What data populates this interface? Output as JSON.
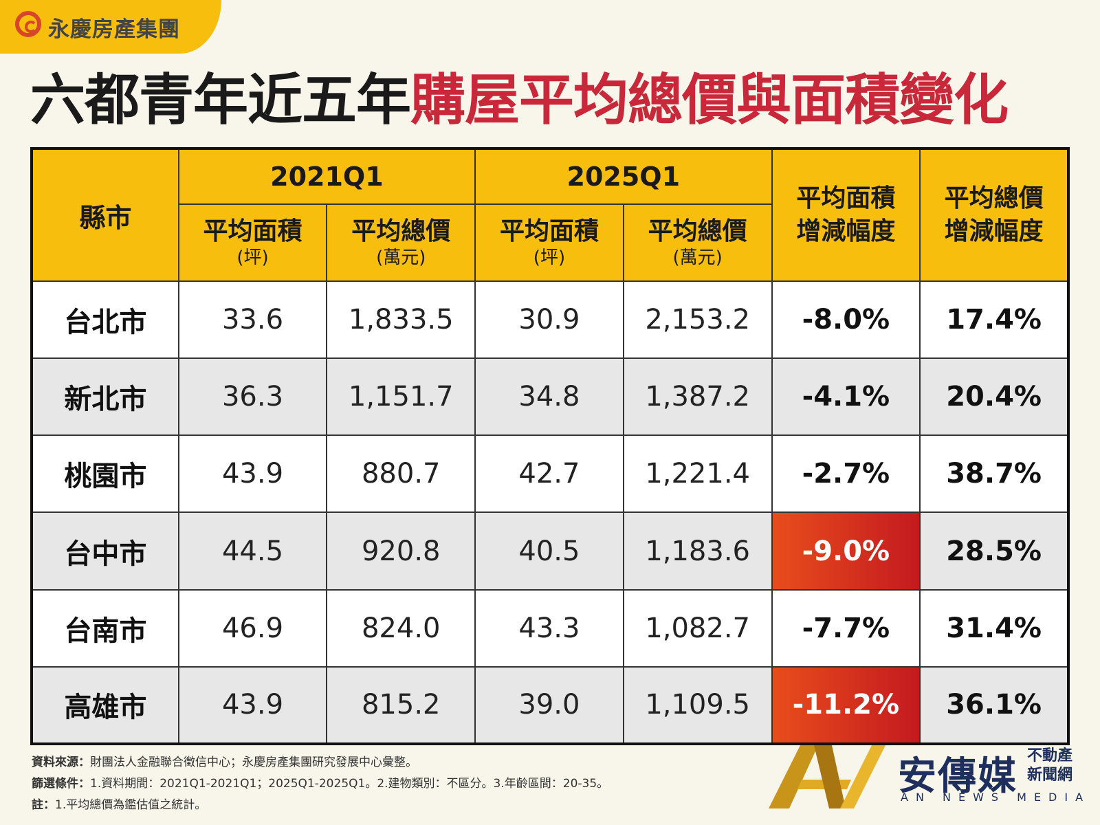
{
  "brand": {
    "name": "永慶房產集團"
  },
  "title": {
    "part1": "六都青年近五年",
    "part2": "購屋平均總價與面積變化"
  },
  "colors": {
    "header": "#f7be0d",
    "title_accent": "#c8283a",
    "highlight": "#d42b1f"
  },
  "table": {
    "city_header": "縣市",
    "groups": [
      "2021Q1",
      "2025Q1"
    ],
    "sub_headers": [
      {
        "label": "平均面積",
        "unit": "(坪)"
      },
      {
        "label": "平均總價",
        "unit": "(萬元)"
      },
      {
        "label": "平均面積",
        "unit": "(坪)"
      },
      {
        "label": "平均總價",
        "unit": "(萬元)"
      }
    ],
    "change_headers": [
      {
        "line1": "平均面積",
        "line2": "增減幅度"
      },
      {
        "line1": "平均總價",
        "line2": "增減幅度"
      }
    ],
    "rows": [
      {
        "city": "台北市",
        "area_2021": "33.6",
        "price_2021": "1,833.5",
        "area_2025": "30.9",
        "price_2025": "2,153.2",
        "area_change": "-8.0%",
        "price_change": "17.4%",
        "highlight": false
      },
      {
        "city": "新北市",
        "area_2021": "36.3",
        "price_2021": "1,151.7",
        "area_2025": "34.8",
        "price_2025": "1,387.2",
        "area_change": "-4.1%",
        "price_change": "20.4%",
        "highlight": false
      },
      {
        "city": "桃園市",
        "area_2021": "43.9",
        "price_2021": "880.7",
        "area_2025": "42.7",
        "price_2025": "1,221.4",
        "area_change": "-2.7%",
        "price_change": "38.7%",
        "highlight": false
      },
      {
        "city": "台中市",
        "area_2021": "44.5",
        "price_2021": "920.8",
        "area_2025": "40.5",
        "price_2025": "1,183.6",
        "area_change": "-9.0%",
        "price_change": "28.5%",
        "highlight": true
      },
      {
        "city": "台南市",
        "area_2021": "46.9",
        "price_2021": "824.0",
        "area_2025": "43.3",
        "price_2025": "1,082.7",
        "area_change": "-7.7%",
        "price_change": "31.4%",
        "highlight": false
      },
      {
        "city": "高雄市",
        "area_2021": "43.9",
        "price_2021": "815.2",
        "area_2025": "39.0",
        "price_2025": "1,109.5",
        "area_change": "-11.2%",
        "price_change": "36.1%",
        "highlight": true
      }
    ]
  },
  "footnotes": {
    "source_label": "資料來源：",
    "source_text": "財團法人金融聯合徵信中心；永慶房產集團研究發展中心彙整。",
    "filter_label": "篩選條件：",
    "filter_text": "1.資料期間：2021Q1-2021Q1；2025Q1-2025Q1。2.建物類別：不區分。3.年齡區間：20-35。",
    "note_label": "註：",
    "note_text": "1.平均總價為鑑估值之統計。"
  },
  "media_logo": {
    "name_cn": "安傳媒",
    "tag_line1": "不動產",
    "tag_line2": "新聞網",
    "name_en": "AN NEWS MEDIA",
    "icon": "an-logo-icon"
  },
  "chart_data": {
    "type": "table",
    "title": "六都青年近五年購屋平均總價與面積變化",
    "columns": [
      "縣市",
      "2021Q1 平均面積(坪)",
      "2021Q1 平均總價(萬元)",
      "2025Q1 平均面積(坪)",
      "2025Q1 平均總價(萬元)",
      "平均面積增減幅度",
      "平均總價增減幅度"
    ],
    "rows": [
      [
        "台北市",
        33.6,
        1833.5,
        30.9,
        2153.2,
        -8.0,
        17.4
      ],
      [
        "新北市",
        36.3,
        1151.7,
        34.8,
        1387.2,
        -4.1,
        20.4
      ],
      [
        "桃園市",
        43.9,
        880.7,
        42.7,
        1221.4,
        -2.7,
        38.7
      ],
      [
        "台中市",
        44.5,
        920.8,
        40.5,
        1183.6,
        -9.0,
        28.5
      ],
      [
        "台南市",
        46.9,
        824.0,
        43.3,
        1082.7,
        -7.7,
        31.4
      ],
      [
        "高雄市",
        43.9,
        815.2,
        39.0,
        1109.5,
        -11.2,
        36.1
      ]
    ]
  }
}
